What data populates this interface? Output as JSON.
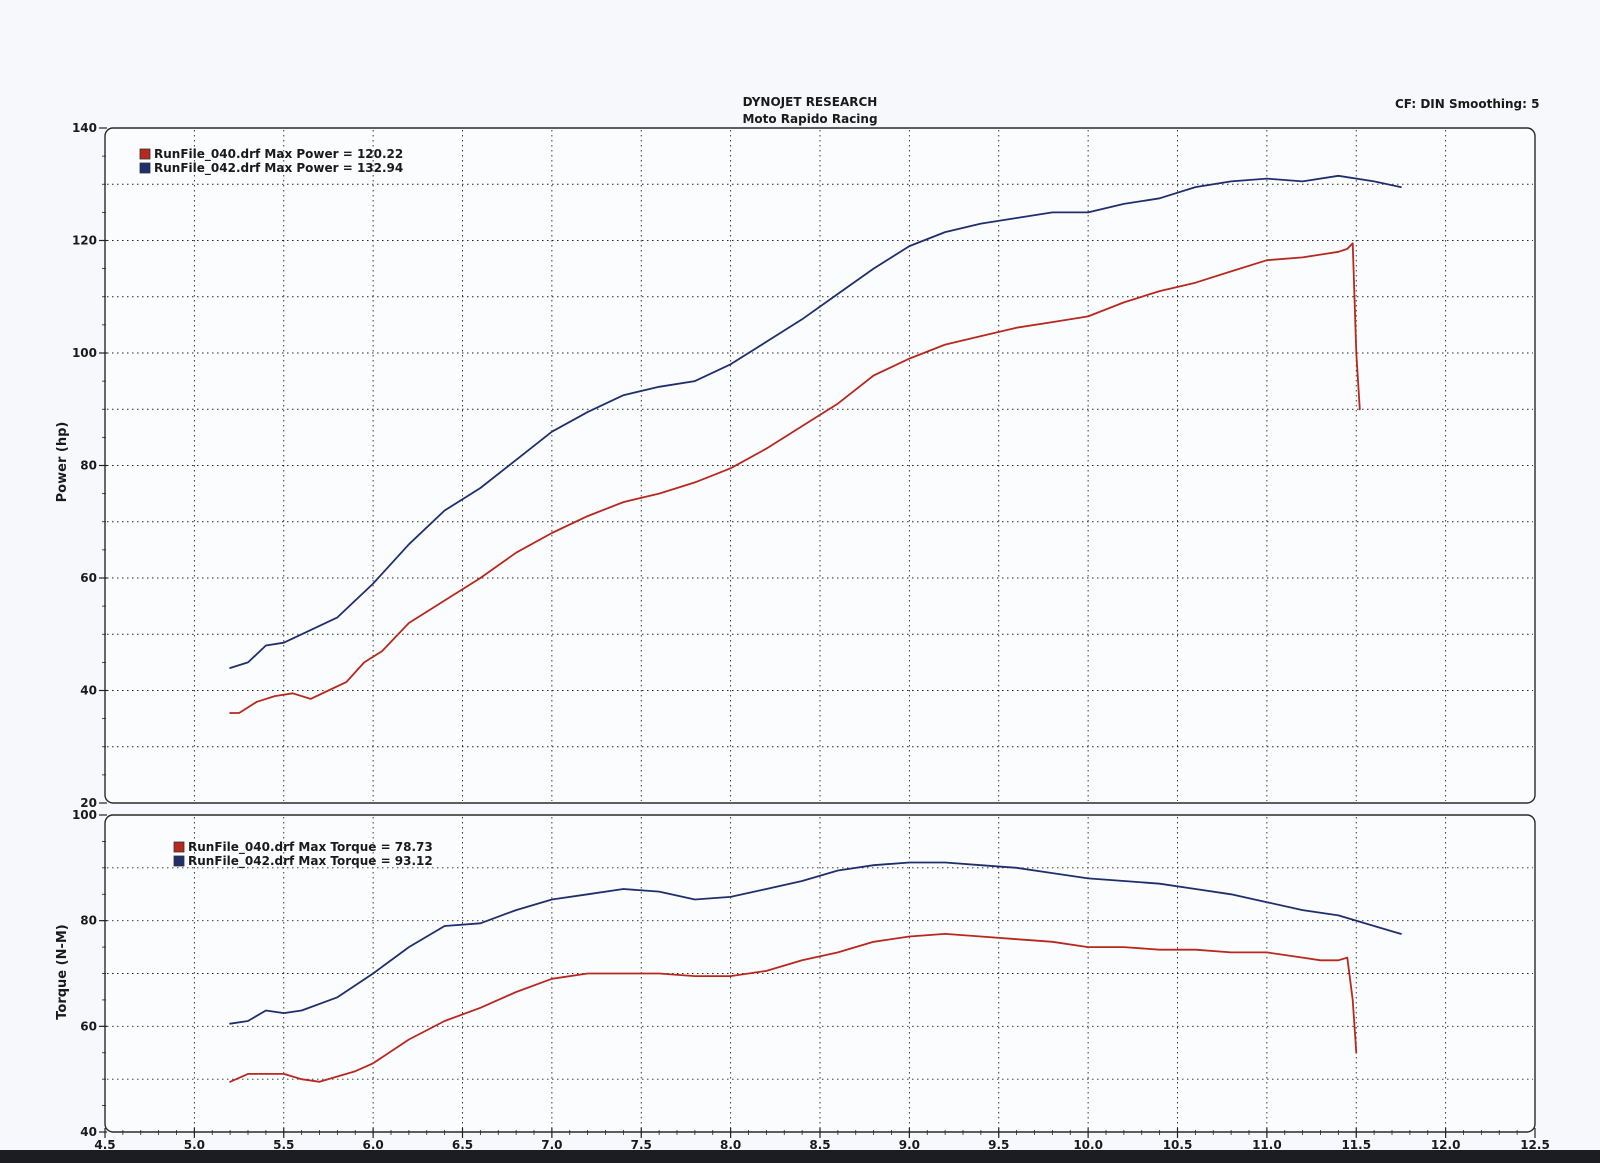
{
  "header": {
    "title": "DYNOJET RESEARCH",
    "subtitle": "Moto Rapido Racing",
    "correction": "CF: DIN  Smoothing: 5"
  },
  "colors": {
    "run040": "#b8281e",
    "run042": "#1f2f6e",
    "grid": "#222222"
  },
  "chart_data": [
    {
      "type": "line",
      "title": "",
      "xlabel": "",
      "ylabel": "Power (hp)",
      "xlim": [
        4.5,
        12.5
      ],
      "ylim": [
        20,
        140
      ],
      "xticks": [
        "4.5",
        "5.0",
        "5.5",
        "6.0",
        "6.5",
        "7.0",
        "7.5",
        "8.0",
        "8.5",
        "9.0",
        "9.5",
        "10.0",
        "10.5",
        "11.0",
        "11.5",
        "12.0",
        "12.5"
      ],
      "yticks": [
        "20",
        "40",
        "60",
        "80",
        "100",
        "120",
        "140"
      ],
      "grid": true,
      "legend": "top-left",
      "legend_entries": [
        "RunFile_040.drf Max Power = 120.22",
        "RunFile_042.drf Max Power = 132.94"
      ],
      "series": [
        {
          "name": "RunFile_040.drf",
          "x": [
            5.2,
            5.25,
            5.35,
            5.45,
            5.55,
            5.65,
            5.75,
            5.85,
            5.95,
            6.05,
            6.2,
            6.4,
            6.6,
            6.8,
            7.0,
            7.2,
            7.4,
            7.6,
            7.8,
            8.0,
            8.2,
            8.4,
            8.6,
            8.8,
            9.0,
            9.2,
            9.4,
            9.6,
            9.8,
            10.0,
            10.2,
            10.4,
            10.6,
            10.8,
            11.0,
            11.2,
            11.3,
            11.4,
            11.45,
            11.48,
            11.5,
            11.52
          ],
          "y": [
            36,
            36,
            38,
            39,
            39.5,
            38.5,
            40,
            41.5,
            45,
            47,
            52,
            56,
            60,
            64.5,
            68,
            71,
            73.5,
            75,
            77,
            79.5,
            83,
            87,
            91,
            96,
            99,
            101.5,
            103,
            104.5,
            105.5,
            106.5,
            109,
            111,
            112.5,
            114.5,
            116.5,
            117,
            117.5,
            118,
            118.5,
            119.5,
            100,
            90
          ],
          "values": [
            36,
            36,
            38,
            39,
            39.5,
            38.5,
            40,
            41.5,
            45,
            47,
            52,
            56,
            60,
            64.5,
            68,
            71,
            73.5,
            75,
            77,
            79.5,
            83,
            87,
            91,
            96,
            99,
            101.5,
            103,
            104.5,
            105.5,
            106.5,
            109,
            111,
            112.5,
            114.5,
            116.5,
            117,
            117.5,
            118,
            118.5,
            119.5,
            100,
            90
          ]
        },
        {
          "name": "RunFile_042.drf",
          "x": [
            5.2,
            5.3,
            5.4,
            5.5,
            5.6,
            5.8,
            6.0,
            6.2,
            6.4,
            6.6,
            6.8,
            7.0,
            7.2,
            7.4,
            7.6,
            7.8,
            8.0,
            8.2,
            8.4,
            8.6,
            8.8,
            9.0,
            9.2,
            9.4,
            9.6,
            9.8,
            10.0,
            10.2,
            10.4,
            10.6,
            10.8,
            11.0,
            11.2,
            11.4,
            11.6,
            11.75
          ],
          "y": [
            44,
            45,
            48,
            48.5,
            50,
            53,
            59,
            66,
            72,
            76,
            81,
            86,
            89.5,
            92.5,
            94,
            95,
            98,
            102,
            106,
            110.5,
            115,
            119,
            121.5,
            123,
            124,
            125,
            125,
            126.5,
            127.5,
            129.5,
            130.5,
            131,
            130.5,
            131.5,
            130.5,
            129.5
          ],
          "values": [
            44,
            45,
            48,
            48.5,
            50,
            53,
            59,
            66,
            72,
            76,
            81,
            86,
            89.5,
            92.5,
            94,
            95,
            98,
            102,
            106,
            110.5,
            115,
            119,
            121.5,
            123,
            124,
            125,
            125,
            126.5,
            127.5,
            129.5,
            130.5,
            131,
            130.5,
            131.5,
            130.5,
            129.5
          ]
        }
      ]
    },
    {
      "type": "line",
      "title": "",
      "xlabel": "",
      "ylabel": "Torque (N-M)",
      "xlim": [
        4.5,
        12.5
      ],
      "ylim": [
        40,
        100
      ],
      "xticks": [
        "4.5",
        "5.0",
        "5.5",
        "6.0",
        "6.5",
        "7.0",
        "7.5",
        "8.0",
        "8.5",
        "9.0",
        "9.5",
        "10.0",
        "10.5",
        "11.0",
        "11.5",
        "12.0",
        "12.5"
      ],
      "yticks": [
        "40",
        "60",
        "80",
        "100"
      ],
      "grid": true,
      "legend": "top-left",
      "legend_entries": [
        "RunFile_040.drf Max Torque = 78.73",
        "RunFile_042.drf Max Torque = 93.12"
      ],
      "series": [
        {
          "name": "RunFile_040.drf",
          "x": [
            5.2,
            5.3,
            5.4,
            5.5,
            5.6,
            5.7,
            5.8,
            5.9,
            6.0,
            6.2,
            6.4,
            6.6,
            6.8,
            7.0,
            7.2,
            7.4,
            7.6,
            7.8,
            8.0,
            8.2,
            8.4,
            8.6,
            8.8,
            9.0,
            9.2,
            9.4,
            9.6,
            9.8,
            10.0,
            10.2,
            10.4,
            10.6,
            10.8,
            11.0,
            11.2,
            11.3,
            11.4,
            11.45,
            11.48,
            11.5
          ],
          "y": [
            49.5,
            51,
            51,
            51,
            50,
            49.5,
            50.5,
            51.5,
            53,
            57.5,
            61,
            63.5,
            66.5,
            69,
            70,
            70,
            70,
            69.5,
            69.5,
            70.5,
            72.5,
            74,
            76,
            77,
            77.5,
            77,
            76.5,
            76,
            75,
            75,
            74.5,
            74.5,
            74,
            74,
            73,
            72.5,
            72.5,
            73,
            65,
            55
          ],
          "values": [
            49.5,
            51,
            51,
            51,
            50,
            49.5,
            50.5,
            51.5,
            53,
            57.5,
            61,
            63.5,
            66.5,
            69,
            70,
            70,
            70,
            69.5,
            69.5,
            70.5,
            72.5,
            74,
            76,
            77,
            77.5,
            77,
            76.5,
            76,
            75,
            75,
            74.5,
            74.5,
            74,
            74,
            73,
            72.5,
            72.5,
            73,
            65,
            55
          ]
        },
        {
          "name": "RunFile_042.drf",
          "x": [
            5.2,
            5.3,
            5.4,
            5.5,
            5.6,
            5.8,
            6.0,
            6.2,
            6.4,
            6.6,
            6.8,
            7.0,
            7.2,
            7.4,
            7.6,
            7.8,
            8.0,
            8.2,
            8.4,
            8.6,
            8.8,
            9.0,
            9.2,
            9.4,
            9.6,
            9.8,
            10.0,
            10.2,
            10.4,
            10.6,
            10.8,
            11.0,
            11.2,
            11.4,
            11.6,
            11.75
          ],
          "y": [
            60.5,
            61,
            63,
            62.5,
            63,
            65.5,
            70,
            75,
            79,
            79.5,
            82,
            84,
            85,
            86,
            85.5,
            84,
            84.5,
            86,
            87.5,
            89.5,
            90.5,
            91,
            91,
            90.5,
            90,
            89,
            88,
            87.5,
            87,
            86,
            85,
            83.5,
            82,
            81,
            79,
            77.5
          ],
          "values": [
            60.5,
            61,
            63,
            62.5,
            63,
            65.5,
            70,
            75,
            79,
            79.5,
            82,
            84,
            85,
            86,
            85.5,
            84,
            84.5,
            86,
            87.5,
            89.5,
            90.5,
            91,
            91,
            90.5,
            90,
            89,
            88,
            87.5,
            87,
            86,
            85,
            83.5,
            82,
            81,
            79,
            77.5
          ]
        }
      ]
    }
  ]
}
